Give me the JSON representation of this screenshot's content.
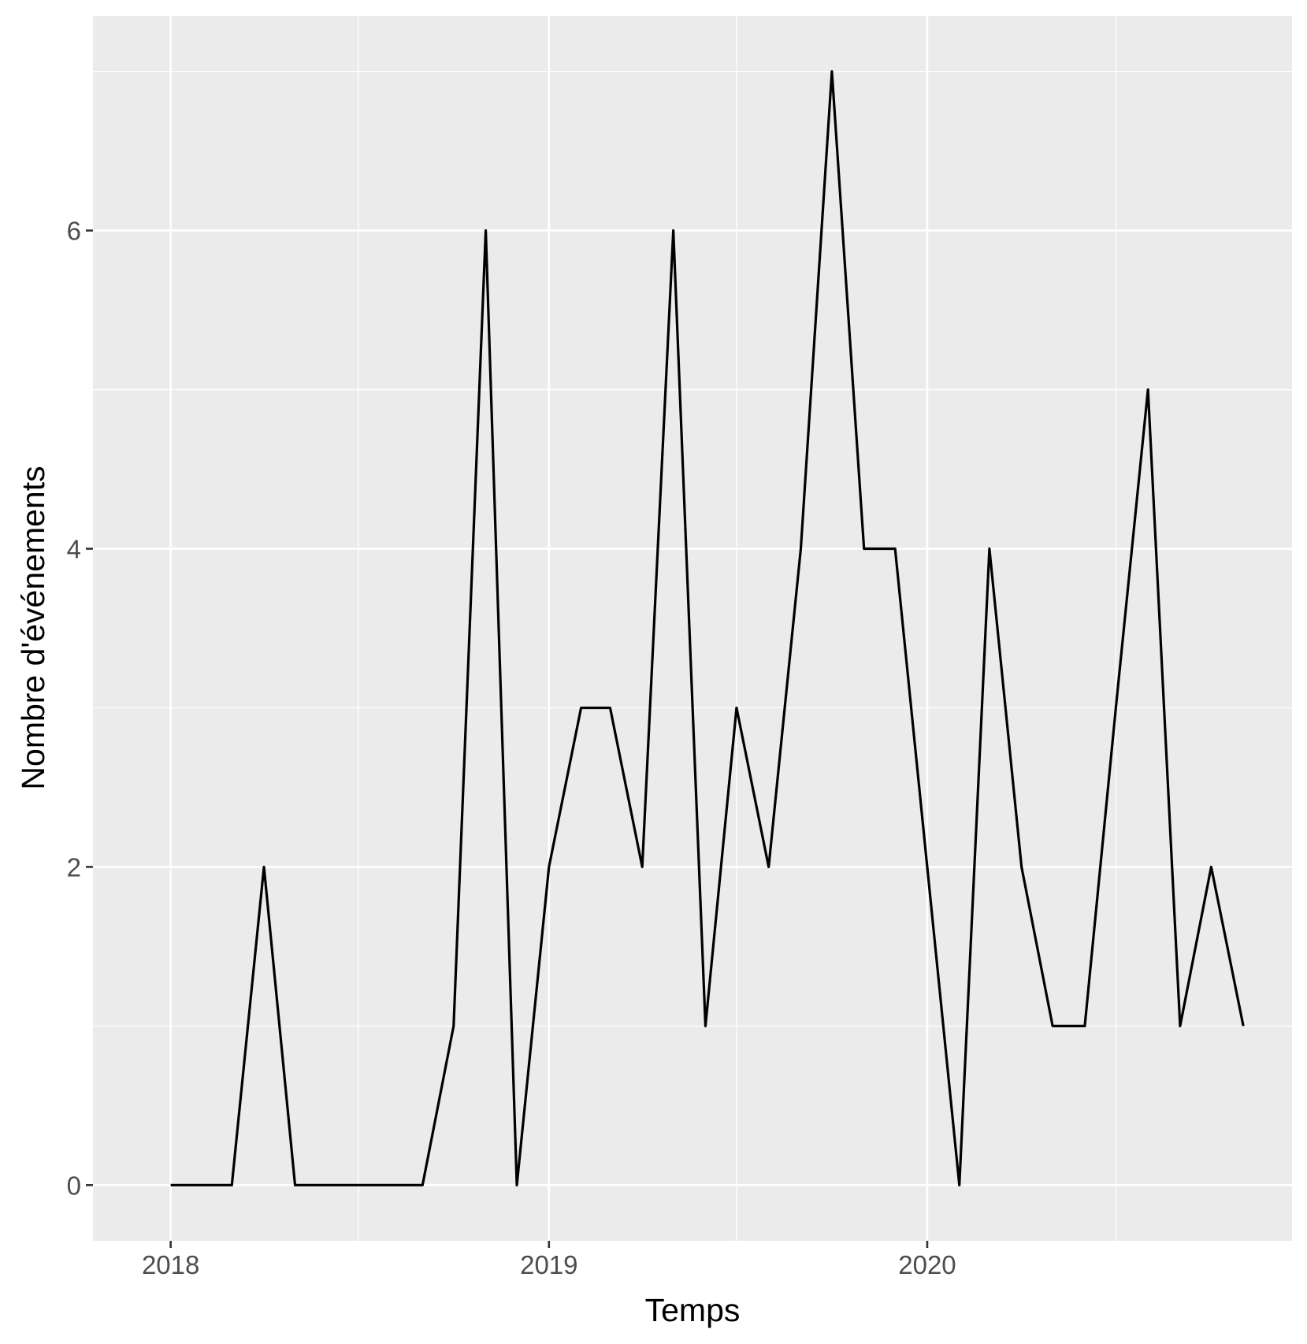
{
  "chart_data": {
    "type": "line",
    "xlabel": "Temps",
    "ylabel": "Nombre d'événements",
    "x_unit": "month",
    "x": [
      "2018-01",
      "2018-02",
      "2018-03",
      "2018-04",
      "2018-05",
      "2018-06",
      "2018-07",
      "2018-08",
      "2018-09",
      "2018-10",
      "2018-11",
      "2018-12",
      "2019-01",
      "2019-02",
      "2019-03",
      "2019-04",
      "2019-05",
      "2019-06",
      "2019-07",
      "2019-08",
      "2019-09",
      "2019-10",
      "2019-11",
      "2019-12",
      "2020-01",
      "2020-02",
      "2020-03",
      "2020-04",
      "2020-05",
      "2020-06",
      "2020-07",
      "2020-08",
      "2020-09",
      "2020-10",
      "2020-11"
    ],
    "series": [
      {
        "values": [
          0,
          0,
          0,
          2,
          0,
          0,
          0,
          0,
          0,
          1,
          6,
          0,
          2,
          3,
          3,
          2,
          6,
          1,
          3,
          2,
          4,
          7,
          4,
          4,
          2,
          0,
          4,
          2,
          1,
          1,
          3,
          5,
          1,
          2,
          1
        ],
        "color": "#000000"
      }
    ],
    "xlim": [
      "2017-10-18",
      "2020-12-18"
    ],
    "ylim": [
      -0.35,
      7.35
    ],
    "x_ticks": [
      {
        "value": "2018-01",
        "label": "2018"
      },
      {
        "value": "2019-01",
        "label": "2019"
      },
      {
        "value": "2020-01",
        "label": "2020"
      }
    ],
    "y_ticks": [
      {
        "value": 0,
        "label": "0"
      },
      {
        "value": 2,
        "label": "2"
      },
      {
        "value": 4,
        "label": "4"
      },
      {
        "value": 6,
        "label": "6"
      }
    ],
    "x_minor_ticks": [
      "2018-07",
      "2019-07",
      "2020-07"
    ],
    "y_minor_ticks": [
      1,
      3,
      5,
      7
    ],
    "grid": true,
    "legend": "none",
    "panel_color": "#ebebeb",
    "grid_color": "#ffffff"
  }
}
